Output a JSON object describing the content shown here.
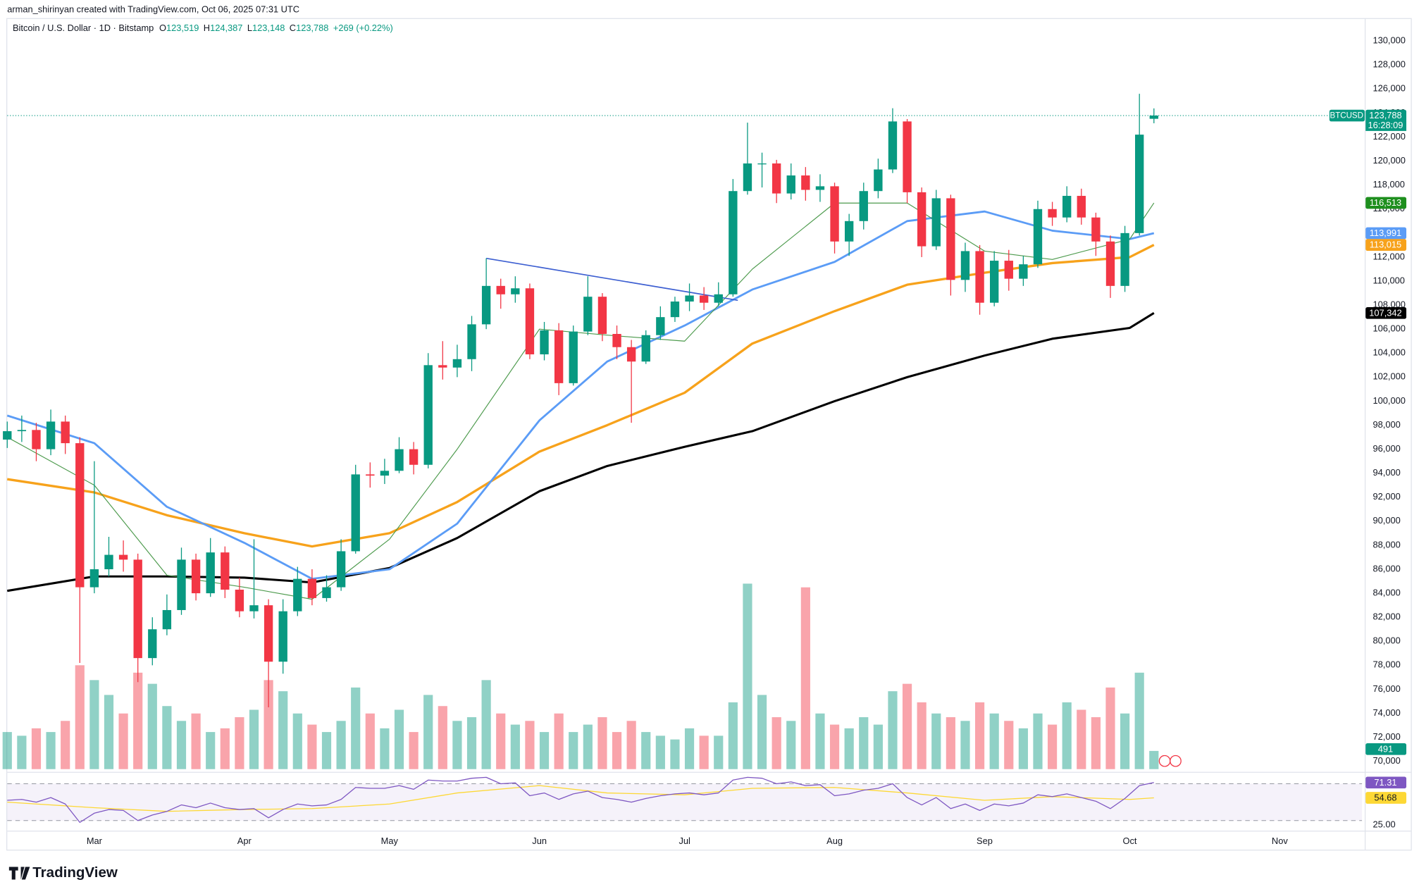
{
  "header": {
    "credit": "arman_shirinyan created with TradingView.com, Oct 06, 2025 07:31 UTC"
  },
  "chart_data": {
    "type": "candlestick",
    "title": "Bitcoin / U.S. Dollar · 1D · Bitstamp",
    "ohlc_legend": [
      {
        "key": "O",
        "value": "123,519"
      },
      {
        "key": "H",
        "value": "124,387"
      },
      {
        "key": "L",
        "value": "123,148"
      },
      {
        "key": "C",
        "value": "123,788"
      }
    ],
    "change": "+269 (+0.22%)",
    "x": [
      42,
      45,
      48,
      51,
      54,
      57,
      60,
      63,
      66,
      69,
      72,
      75,
      78,
      81,
      84,
      87,
      90,
      93,
      96,
      99,
      102,
      105,
      108,
      111,
      114,
      117,
      120,
      123,
      126,
      129,
      132,
      135,
      138,
      141,
      144,
      147,
      150,
      153,
      156,
      159,
      162,
      165,
      168,
      171,
      174,
      177,
      180,
      183,
      186,
      189,
      192,
      195,
      198,
      201,
      204,
      207,
      210,
      213,
      216,
      219,
      222,
      225,
      228,
      231,
      234,
      237,
      240,
      243,
      246,
      249,
      252,
      255,
      258,
      261,
      264,
      267,
      270,
      273,
      276,
      279
    ],
    "open": [
      96800,
      97500,
      97600,
      96000,
      98300,
      96500,
      84500,
      86000,
      87200,
      86800,
      78600,
      81000,
      82600,
      86800,
      84000,
      87400,
      84300,
      82500,
      83000,
      78300,
      82500,
      85200,
      83600,
      84500,
      87500,
      93900,
      93800,
      94200,
      96000,
      94700,
      103000,
      102800,
      103500,
      106400,
      109600,
      108900,
      109400,
      103900,
      105900,
      101500,
      105800,
      108700,
      105600,
      104500,
      103300,
      105500,
      107000,
      108300,
      108800,
      108200,
      108900,
      117500,
      119800,
      119800,
      117300,
      118800,
      117600,
      117900,
      113300,
      115000,
      117500,
      119300,
      123300,
      117400,
      112900,
      116900,
      110100,
      112500,
      108200,
      111700,
      110200,
      111400,
      116000,
      115300,
      117100,
      115300,
      113300,
      109600,
      114000,
      123519
    ],
    "high": [
      98300,
      98800,
      98200,
      99300,
      98800,
      97000,
      95000,
      88700,
      88400,
      87300,
      82000,
      83900,
      87800,
      87300,
      88600,
      87900,
      85300,
      88500,
      83500,
      83500,
      86200,
      86000,
      85500,
      88500,
      94700,
      94900,
      95200,
      97000,
      96600,
      104000,
      105000,
      104700,
      107100,
      111900,
      110200,
      110400,
      109800,
      106600,
      106500,
      106300,
      110400,
      109000,
      106300,
      105100,
      105900,
      107900,
      108700,
      109800,
      109500,
      109900,
      118500,
      123200,
      120700,
      120100,
      119800,
      119500,
      118900,
      118200,
      115600,
      118200,
      120200,
      124400,
      123500,
      117800,
      117600,
      117200,
      113200,
      113000,
      112500,
      112600,
      112100,
      116700,
      116600,
      117900,
      117700,
      115700,
      113800,
      114600,
      125600,
      124387
    ],
    "low": [
      96100,
      96600,
      95000,
      95500,
      95600,
      78200,
      84000,
      85400,
      85800,
      76600,
      78000,
      80500,
      82200,
      83400,
      83700,
      83600,
      82000,
      81900,
      74500,
      77300,
      82100,
      83000,
      83300,
      84200,
      87300,
      92800,
      93100,
      94000,
      93900,
      94400,
      101800,
      102000,
      102500,
      106000,
      107700,
      108200,
      103500,
      103400,
      100500,
      101300,
      105500,
      105000,
      103500,
      98200,
      103100,
      105100,
      106600,
      107500,
      107600,
      107900,
      108700,
      117200,
      117800,
      116500,
      116800,
      116700,
      116600,
      112300,
      112100,
      114300,
      116900,
      119000,
      116500,
      112000,
      112600,
      108800,
      109100,
      107200,
      107900,
      109200,
      109600,
      111100,
      114600,
      114900,
      114700,
      112100,
      108600,
      109100,
      113800,
      123148
    ],
    "close": [
      97500,
      97600,
      96000,
      98300,
      96500,
      84500,
      86000,
      87200,
      86800,
      78600,
      81000,
      82600,
      86800,
      84000,
      87400,
      84300,
      82500,
      83000,
      78300,
      82500,
      85200,
      83600,
      84500,
      87500,
      93900,
      93800,
      94200,
      96000,
      94700,
      103000,
      102800,
      103500,
      106400,
      109600,
      108900,
      109400,
      103900,
      105900,
      101500,
      105800,
      108700,
      105600,
      104500,
      103300,
      105500,
      107000,
      108300,
      108800,
      108200,
      108900,
      117500,
      119800,
      119800,
      117300,
      118800,
      117600,
      117900,
      113300,
      115000,
      117500,
      119300,
      123300,
      117400,
      112900,
      116900,
      110100,
      112500,
      108200,
      111700,
      110200,
      111400,
      116000,
      115300,
      117100,
      115300,
      113300,
      109600,
      114000,
      122200,
      123788
    ],
    "up_color": "#089981",
    "down_color": "#f23645",
    "xlim": [
      42,
      322
    ],
    "xticks": [
      {
        "value": 60,
        "label": "Mar"
      },
      {
        "value": 91,
        "label": "Apr"
      },
      {
        "value": 121,
        "label": "May"
      },
      {
        "value": 152,
        "label": "Jun"
      },
      {
        "value": 182,
        "label": "Jul"
      },
      {
        "value": 213,
        "label": "Aug"
      },
      {
        "value": 244,
        "label": "Sep"
      },
      {
        "value": 274,
        "label": "Oct"
      },
      {
        "value": 305,
        "label": "Nov"
      }
    ],
    "ylim": [
      69200,
      130400
    ],
    "yticks": [
      {
        "value": 70000,
        "label": "70,000"
      },
      {
        "value": 72000,
        "label": "72,000"
      },
      {
        "value": 74000,
        "label": "74,000"
      },
      {
        "value": 76000,
        "label": "76,000"
      },
      {
        "value": 78000,
        "label": "78,000"
      },
      {
        "value": 80000,
        "label": "80,000"
      },
      {
        "value": 82000,
        "label": "82,000"
      },
      {
        "value": 84000,
        "label": "84,000"
      },
      {
        "value": 86000,
        "label": "86,000"
      },
      {
        "value": 88000,
        "label": "88,000"
      },
      {
        "value": 90000,
        "label": "90,000"
      },
      {
        "value": 92000,
        "label": "92,000"
      },
      {
        "value": 94000,
        "label": "94,000"
      },
      {
        "value": 96000,
        "label": "96,000"
      },
      {
        "value": 98000,
        "label": "98,000"
      },
      {
        "value": 100000,
        "label": "100,000"
      },
      {
        "value": 102000,
        "label": "102,000"
      },
      {
        "value": 104000,
        "label": "104,000"
      },
      {
        "value": 106000,
        "label": "106,000"
      },
      {
        "value": 108000,
        "label": "108,000"
      },
      {
        "value": 110000,
        "label": "110,000"
      },
      {
        "value": 112000,
        "label": "112,000"
      },
      {
        "value": 114000,
        "label": "114,000"
      },
      {
        "value": 116000,
        "label": "116,000"
      },
      {
        "value": 118000,
        "label": "118,000"
      },
      {
        "value": 120000,
        "label": "120,000"
      },
      {
        "value": 122000,
        "label": "122,000"
      },
      {
        "value": 124000,
        "label": "124,000"
      },
      {
        "value": 126000,
        "label": "126,000"
      },
      {
        "value": 128000,
        "label": "128,000"
      },
      {
        "value": 130000,
        "label": "130,000"
      }
    ],
    "symbol": "BTCUSD",
    "countdown": "16:28:09",
    "price_badges": [
      {
        "value": 123788,
        "label": "123,788",
        "color": "#089981"
      },
      {
        "value": 116513,
        "label": "116,513",
        "color": "#1e8f1e"
      },
      {
        "value": 113991,
        "label": "113,991",
        "color": "#5b9cf6"
      },
      {
        "value": 113015,
        "label": "113,015",
        "color": "#f7a21b"
      },
      {
        "value": 107342,
        "label": "107,342",
        "color": "#000000"
      }
    ],
    "lines": [
      {
        "color": "#000000",
        "width": 2.4,
        "x": [
          42,
          60,
          75,
          91,
          105,
          121,
          135,
          152,
          166,
          182,
          196,
          213,
          228,
          244,
          258,
          274,
          279
        ],
        "values": [
          84200,
          85400,
          85400,
          85300,
          84900,
          86100,
          88600,
          92500,
          94600,
          96200,
          97500,
          100000,
          102000,
          103800,
          105200,
          106100,
          107342
        ]
      },
      {
        "color": "#f7a21b",
        "width": 2.6,
        "x": [
          42,
          60,
          75,
          91,
          105,
          121,
          135,
          152,
          166,
          182,
          196,
          213,
          228,
          244,
          258,
          274,
          279
        ],
        "values": [
          93500,
          92400,
          90500,
          89000,
          87900,
          89000,
          91600,
          95800,
          98000,
          100700,
          104800,
          107500,
          109700,
          110700,
          111500,
          112000,
          113015
        ]
      },
      {
        "color": "#5b9cf6",
        "width": 2.2,
        "x": [
          42,
          60,
          75,
          91,
          105,
          121,
          135,
          152,
          166,
          182,
          196,
          213,
          228,
          244,
          258,
          274,
          279
        ],
        "values": [
          98800,
          96500,
          91200,
          88200,
          85200,
          86000,
          89800,
          98400,
          103300,
          106300,
          109300,
          111600,
          115000,
          115800,
          114200,
          113500,
          113991
        ]
      },
      {
        "color": "#4c9a4c",
        "width": 0.9,
        "x": [
          42,
          60,
          75,
          91,
          105,
          121,
          135,
          152,
          166,
          182,
          196,
          213,
          228,
          244,
          258,
          274,
          279
        ],
        "values": [
          97000,
          93000,
          85500,
          84500,
          83500,
          88500,
          96000,
          106000,
          105500,
          105000,
          111000,
          116500,
          116500,
          112500,
          111800,
          113500,
          116513
        ]
      },
      {
        "color": "#3d5fd1",
        "width": 1.3,
        "x": [
          141,
          193
        ],
        "values": [
          111900,
          108400
        ]
      }
    ],
    "volume": [
      1000,
      900,
      1100,
      1000,
      1300,
      2800,
      2400,
      2000,
      1500,
      2600,
      2300,
      1700,
      1300,
      1500,
      1000,
      1100,
      1400,
      1600,
      2400,
      2100,
      1500,
      1200,
      1000,
      1300,
      2200,
      1500,
      1100,
      1600,
      1000,
      2000,
      1700,
      1300,
      1400,
      2400,
      1500,
      1200,
      1300,
      1000,
      1500,
      1000,
      1200,
      1400,
      1000,
      1300,
      1000,
      900,
      800,
      1100,
      900,
      900,
      1800,
      5000,
      2000,
      1400,
      1300,
      4900,
      1500,
      1200,
      1100,
      1400,
      1200,
      2100,
      2300,
      1800,
      1500,
      1400,
      1300,
      1800,
      1500,
      1300,
      1100,
      1500,
      1200,
      1800,
      1600,
      1400,
      2200,
      1500,
      2600,
      491
    ],
    "volume_ylim": [
      0,
      5000
    ],
    "rsi": {
      "color": "#7e57c2",
      "values": [
        52,
        53,
        50,
        55,
        48,
        28,
        38,
        42,
        41,
        30,
        36,
        40,
        47,
        44,
        49,
        44,
        42,
        43,
        33,
        42,
        48,
        46,
        47,
        53,
        66,
        65,
        65,
        68,
        64,
        74,
        73,
        73,
        76,
        77,
        70,
        71,
        57,
        60,
        53,
        59,
        62,
        55,
        53,
        50,
        54,
        57,
        59,
        60,
        58,
        60,
        74,
        77,
        76,
        70,
        72,
        68,
        69,
        57,
        59,
        63,
        65,
        70,
        55,
        47,
        55,
        43,
        48,
        41,
        48,
        46,
        49,
        58,
        56,
        59,
        55,
        51,
        43,
        54,
        68,
        71.31
      ],
      "ma": {
        "color": "#fdd835",
        "x": [
          42,
          60,
          75,
          91,
          105,
          121,
          135,
          152,
          166,
          182,
          196,
          213,
          228,
          244,
          258,
          274,
          279
        ],
        "values": [
          50,
          44,
          40,
          42,
          43,
          48,
          60,
          68,
          60,
          58,
          65,
          66,
          60,
          52,
          56,
          53,
          54.68
        ]
      },
      "ylim": [
        20,
        80
      ],
      "band": [
        30,
        70
      ],
      "yticks": [
        {
          "value": 25,
          "label": "25.00"
        }
      ]
    }
  },
  "footer": {
    "brand": "TradingView"
  }
}
